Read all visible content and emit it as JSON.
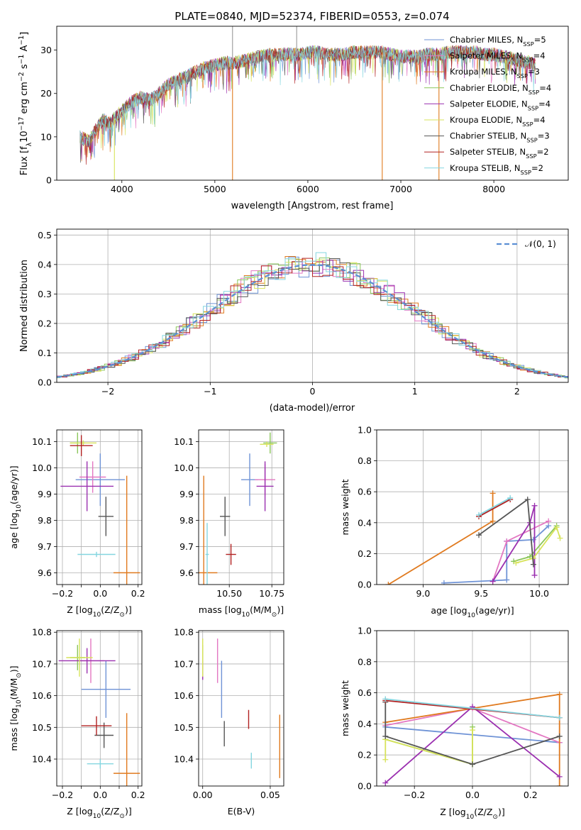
{
  "title": "PLATE=0840, MJD=52374, FIBERID=0553, z=0.074",
  "series": [
    {
      "key": "chab_miles",
      "color": "#6f93d6",
      "label": "Chabrier MILES, N",
      "sub": "SSP",
      "suffix": "=5"
    },
    {
      "key": "salp_miles",
      "color": "#e377c2",
      "label": "Salpeter MILES, N",
      "sub": "SSP",
      "suffix": "=4"
    },
    {
      "key": "krou_miles",
      "color": "#e07a1f",
      "label": "Kroupa MILES, N",
      "sub": "SSP",
      "suffix": "=3"
    },
    {
      "key": "chab_elodie",
      "color": "#8ac65a",
      "label": "Chabrier ELODIE, N",
      "sub": "SSP",
      "suffix": "=4"
    },
    {
      "key": "salp_elodie",
      "color": "#9b30b0",
      "label": "Salpeter ELODIE, N",
      "sub": "SSP",
      "suffix": "=4"
    },
    {
      "key": "krou_elodie",
      "color": "#d7e35a",
      "label": "Kroupa ELODIE, N",
      "sub": "SSP",
      "suffix": "=4"
    },
    {
      "key": "chab_stelib",
      "color": "#555555",
      "label": "Chabrier STELIB, N",
      "sub": "SSP",
      "suffix": "=3"
    },
    {
      "key": "salp_stelib",
      "color": "#b22222",
      "label": "Salpeter STELIB, N",
      "sub": "SSP",
      "suffix": "=2"
    },
    {
      "key": "krou_stelib",
      "color": "#84d6e0",
      "label": "Kroupa STELIB, N",
      "sub": "SSP",
      "suffix": "=2"
    }
  ],
  "chart_data": [
    {
      "id": "spectrum",
      "type": "line",
      "xlabel": "wavelength [Angstrom, rest frame]",
      "ylabel": "Flux [f",
      "ylabel_sub": "λ",
      "ylabel_rest": "10",
      "ylabel_sup": "−17",
      "ylabel_tail": " erg cm",
      "ylabel_sup2": "−2",
      "ylabel_tail2": " s",
      "ylabel_sup3": "−1",
      "ylabel_tail3": " A",
      "ylabel_sup4": "−1",
      "ylabel_end": "]",
      "xlim": [
        3300,
        8800
      ],
      "ylim": [
        0,
        35.5
      ],
      "xticks": [
        4000,
        5000,
        6000,
        7000,
        8000
      ],
      "yticks": [
        0,
        10,
        20,
        30
      ],
      "continuum": [
        [
          3550,
          10
        ],
        [
          3650,
          9
        ],
        [
          3700,
          11
        ],
        [
          3800,
          14
        ],
        [
          3870,
          13
        ],
        [
          3950,
          15
        ],
        [
          4000,
          16
        ],
        [
          4100,
          18
        ],
        [
          4200,
          19
        ],
        [
          4300,
          18.5
        ],
        [
          4400,
          20
        ],
        [
          4500,
          22
        ],
        [
          4600,
          23
        ],
        [
          4700,
          24
        ],
        [
          4800,
          25
        ],
        [
          4900,
          26
        ],
        [
          5000,
          26.5
        ],
        [
          5100,
          27
        ],
        [
          5200,
          27
        ],
        [
          5300,
          27.5
        ],
        [
          5400,
          28
        ],
        [
          5500,
          28.5
        ],
        [
          5600,
          29
        ],
        [
          5700,
          29
        ],
        [
          5800,
          29
        ],
        [
          5900,
          29
        ],
        [
          6000,
          29.5
        ],
        [
          6100,
          29.5
        ],
        [
          6200,
          29
        ],
        [
          6300,
          29
        ],
        [
          6400,
          29
        ],
        [
          6500,
          29.5
        ],
        [
          6600,
          29.5
        ],
        [
          6700,
          29.5
        ],
        [
          6800,
          29.5
        ],
        [
          6900,
          29
        ],
        [
          7000,
          28.5
        ],
        [
          7100,
          28.5
        ],
        [
          7200,
          28.5
        ],
        [
          7300,
          29
        ],
        [
          7400,
          29
        ],
        [
          7500,
          29.5
        ],
        [
          7600,
          29.5
        ],
        [
          7700,
          29.5
        ],
        [
          7800,
          29.5
        ],
        [
          7900,
          29
        ],
        [
          8000,
          29
        ],
        [
          8100,
          28.5
        ],
        [
          8200,
          28
        ],
        [
          8300,
          27.5
        ],
        [
          8400,
          27
        ],
        [
          8450,
          26.5
        ]
      ],
      "spikes": [
        [
          3920,
          -1
        ],
        [
          5190,
          -1
        ],
        [
          6800,
          -1
        ],
        [
          7410,
          -1
        ],
        [
          5190,
          37
        ],
        [
          5880,
          37
        ]
      ]
    },
    {
      "id": "residual_hist",
      "type": "area",
      "xlabel": "(data-model)/error",
      "ylabel": "Normed distribution",
      "xlim": [
        -2.5,
        2.5
      ],
      "ylim": [
        0,
        0.52
      ],
      "xticks": [
        -2,
        -1,
        0,
        1,
        2
      ],
      "yticks": [
        0,
        0.1,
        0.2,
        0.3,
        0.4,
        0.5
      ],
      "legend": "𝒩(0, 1)",
      "bin_width": 0.1
    },
    {
      "id": "age_vs_Z",
      "type": "scatter",
      "xlabel": "Z [log",
      "xlabel_sub": "10",
      "xlabel_tail": "(Z/Z",
      "xlabel_sub2": "⊙",
      "xlabel_end": ")]",
      "ylabel": "age  [log",
      "ylabel_sub": "10",
      "ylabel_tail": "(age/yr)]",
      "xlim": [
        -0.23,
        0.22
      ],
      "ylim": [
        9.555,
        10.145
      ],
      "xticks": [
        -0.2,
        -0.1,
        0.0,
        0.1,
        0.2
      ],
      "xticklabels": [
        "−0.2",
        "",
        "0.0",
        "",
        "0.2"
      ],
      "yticks": [
        9.6,
        9.7,
        9.8,
        9.9,
        10.0,
        10.1
      ],
      "points": [
        {
          "s": 0,
          "x": 0.0,
          "xe": 0.13,
          "y": 9.955,
          "ye": 0.1
        },
        {
          "s": 1,
          "x": -0.04,
          "xe": 0.07,
          "y": 9.965,
          "ye": 0.06
        },
        {
          "s": 2,
          "x": 0.14,
          "xe": 0.07,
          "y": 9.6,
          "ye": 0.37
        },
        {
          "s": 3,
          "x": -0.12,
          "xe": 0.04,
          "y": 10.095,
          "ye": 0.04
        },
        {
          "s": 4,
          "x": -0.07,
          "xe": 0.14,
          "y": 9.93,
          "ye": 0.095
        },
        {
          "s": 5,
          "x": -0.09,
          "xe": 0.07,
          "y": 10.095,
          "ye": 0.01
        },
        {
          "s": 6,
          "x": 0.03,
          "xe": 0.04,
          "y": 9.815,
          "ye": 0.075
        },
        {
          "s": 7,
          "x": -0.1,
          "xe": 0.06,
          "y": 10.085,
          "ye": 0.04
        },
        {
          "s": 8,
          "x": -0.02,
          "xe": 0.1,
          "y": 9.67,
          "ye": 0.01
        }
      ]
    },
    {
      "id": "age_vs_mass",
      "type": "scatter",
      "xlabel": "mass [log",
      "xlabel_sub": "10",
      "xlabel_tail": "(M/M",
      "xlabel_sub2": "⊙",
      "xlabel_end": ")]",
      "xlim": [
        10.32,
        10.82
      ],
      "ylim": [
        9.555,
        10.145
      ],
      "xticks": [
        10.5,
        10.75
      ],
      "xticklabels": [
        "10.50",
        "10.75"
      ],
      "yticks": [
        9.6,
        9.7,
        9.8,
        9.9,
        10.0,
        10.1
      ],
      "points": [
        {
          "s": 0,
          "x": 10.62,
          "xe": 0.05,
          "y": 9.955,
          "ye": 0.1
        },
        {
          "s": 1,
          "x": 10.71,
          "xe": 0.06,
          "y": 9.955,
          "ye": 0.06
        },
        {
          "s": 2,
          "x": 10.35,
          "xe": 0.08,
          "y": 9.6,
          "ye": 0.37
        },
        {
          "s": 3,
          "x": 10.74,
          "xe": 0.04,
          "y": 10.095,
          "ye": 0.04
        },
        {
          "s": 4,
          "x": 10.71,
          "xe": 0.05,
          "y": 9.93,
          "ye": 0.095
        },
        {
          "s": 5,
          "x": 10.72,
          "xe": 0.04,
          "y": 10.09,
          "ye": 0.01
        },
        {
          "s": 6,
          "x": 10.475,
          "xe": 0.03,
          "y": 9.815,
          "ye": 0.075
        },
        {
          "s": 7,
          "x": 10.51,
          "xe": 0.03,
          "y": 9.67,
          "ye": 0.04
        },
        {
          "s": 8,
          "x": 10.37,
          "xe": 0.01,
          "y": 9.67,
          "ye": 0.12
        }
      ]
    },
    {
      "id": "weight_vs_age",
      "type": "line",
      "xlabel": "age  [log",
      "xlabel_sub": "10",
      "xlabel_tail": "(age/yr)]",
      "ylabel": "mass weight",
      "xlim": [
        8.6,
        10.25
      ],
      "ylim": [
        0,
        1
      ],
      "xticks": [
        9.0,
        9.5,
        10.0
      ],
      "xticklabels": [
        "9.0",
        "9.5",
        "10.0"
      ],
      "yticks": [
        0,
        0.2,
        0.4,
        0.6,
        0.8,
        1.0
      ],
      "lines": [
        {
          "s": 0,
          "pts": [
            [
              9.18,
              0.01
            ],
            [
              9.72,
              0.03
            ],
            [
              9.72,
              0.28
            ],
            [
              9.95,
              0.29
            ],
            [
              10.08,
              0.38
            ]
          ]
        },
        {
          "s": 1,
          "pts": [
            [
              9.6,
              0.02
            ],
            [
              9.72,
              0.28
            ],
            [
              10.08,
              0.41
            ]
          ]
        },
        {
          "s": 2,
          "pts": [
            [
              8.7,
              0.0
            ],
            [
              9.6,
              0.41
            ],
            [
              9.6,
              0.59
            ]
          ]
        },
        {
          "s": 3,
          "pts": [
            [
              9.78,
              0.15
            ],
            [
              9.92,
              0.18
            ],
            [
              10.15,
              0.38
            ]
          ]
        },
        {
          "s": 4,
          "pts": [
            [
              9.6,
              0.02
            ],
            [
              9.92,
              0.4
            ],
            [
              9.96,
              0.51
            ],
            [
              9.96,
              0.06
            ]
          ]
        },
        {
          "s": 5,
          "pts": [
            [
              9.8,
              0.14
            ],
            [
              9.95,
              0.17
            ],
            [
              10.15,
              0.37
            ],
            [
              10.18,
              0.3
            ]
          ]
        },
        {
          "s": 6,
          "pts": [
            [
              9.48,
              0.32
            ],
            [
              9.9,
              0.55
            ],
            [
              9.95,
              0.13
            ]
          ]
        },
        {
          "s": 7,
          "pts": [
            [
              9.48,
              0.44
            ],
            [
              9.75,
              0.55
            ]
          ]
        },
        {
          "s": 8,
          "pts": [
            [
              9.48,
              0.45
            ],
            [
              9.75,
              0.56
            ]
          ]
        }
      ]
    },
    {
      "id": "mass_vs_Z",
      "type": "scatter",
      "xlabel": "Z [log",
      "xlabel_sub": "10",
      "xlabel_tail": "(Z/Z",
      "xlabel_sub2": "⊙",
      "xlabel_end": ")]",
      "ylabel": "mass [log",
      "ylabel_sub": "10",
      "ylabel_tail": "(M/M",
      "ylabel_sub2": "⊙",
      "ylabel_end": ")]",
      "xlim": [
        -0.23,
        0.22
      ],
      "ylim": [
        10.315,
        10.805
      ],
      "xticks": [
        -0.2,
        -0.1,
        0.0,
        0.1,
        0.2
      ],
      "xticklabels": [
        "−0.2",
        "",
        "0.0",
        "",
        "0.2"
      ],
      "yticks": [
        10.4,
        10.5,
        10.6,
        10.7,
        10.8
      ],
      "points": [
        {
          "s": 0,
          "x": 0.03,
          "xe": 0.13,
          "y": 10.62,
          "ye": 0.09
        },
        {
          "s": 1,
          "x": -0.05,
          "xe": 0.07,
          "y": 10.71,
          "ye": 0.07
        },
        {
          "s": 2,
          "x": 0.14,
          "xe": 0.07,
          "y": 10.355,
          "ye": 0.19
        },
        {
          "s": 3,
          "x": -0.12,
          "xe": 0.04,
          "y": 10.72,
          "ye": 0.04
        },
        {
          "s": 4,
          "x": -0.07,
          "xe": 0.15,
          "y": 10.71,
          "ye": 0.04
        },
        {
          "s": 5,
          "x": -0.11,
          "xe": 0.07,
          "y": 10.72,
          "ye": 0.06
        },
        {
          "s": 6,
          "x": 0.02,
          "xe": 0.05,
          "y": 10.475,
          "ye": 0.04
        },
        {
          "s": 7,
          "x": -0.02,
          "xe": 0.08,
          "y": 10.505,
          "ye": 0.03
        },
        {
          "s": 8,
          "x": 0.0,
          "xe": 0.07,
          "y": 10.385,
          "ye": 0.015
        }
      ]
    },
    {
      "id": "mass_vs_ebv",
      "type": "scatter",
      "xlabel": "E(B-V)",
      "xlim": [
        -0.003,
        0.06
      ],
      "ylim": [
        10.315,
        10.805
      ],
      "xticks": [
        0,
        0.05
      ],
      "xticklabels": [
        "0.00",
        "0.05"
      ],
      "yticks": [
        10.4,
        10.5,
        10.6,
        10.7,
        10.8
      ],
      "points": [
        {
          "s": 0,
          "x": 0.014,
          "y": 10.62,
          "ye": 0.09
        },
        {
          "s": 1,
          "x": 0.011,
          "y": 10.71,
          "ye": 0.07
        },
        {
          "s": 2,
          "x": 0.057,
          "y": 10.44,
          "ye": 0.1
        },
        {
          "s": 3,
          "x": 0.0,
          "y": 10.72,
          "ye": 0.04
        },
        {
          "s": 4,
          "x": 0.0,
          "y": 10.68,
          "ye": 0.03
        },
        {
          "s": 5,
          "x": 0.0,
          "y": 10.72,
          "ye": 0.06
        },
        {
          "s": 6,
          "x": 0.016,
          "y": 10.48,
          "ye": 0.04
        },
        {
          "s": 7,
          "x": 0.034,
          "y": 10.525,
          "ye": 0.03
        },
        {
          "s": 8,
          "x": 0.036,
          "y": 10.395,
          "ye": 0.025
        }
      ]
    },
    {
      "id": "weight_vs_Z",
      "type": "line",
      "xlabel": "Z [log",
      "xlabel_sub": "10",
      "xlabel_tail": "(Z/Z",
      "xlabel_sub2": "⊙",
      "xlabel_end": ")]",
      "ylabel": "mass weight",
      "xlim": [
        -0.33,
        0.33
      ],
      "ylim": [
        0,
        1
      ],
      "xticks": [
        -0.2,
        0.0,
        0.2
      ],
      "xticklabels": [
        "−0.2",
        "0.0",
        "0.2"
      ],
      "yticks": [
        0,
        0.2,
        0.4,
        0.6,
        0.8,
        1.0
      ],
      "lines": [
        {
          "s": 0,
          "pts": [
            [
              -0.3,
              0.38
            ],
            [
              0.3,
              0.28
            ]
          ]
        },
        {
          "s": 1,
          "pts": [
            [
              -0.3,
              0.39
            ],
            [
              0.0,
              0.5
            ],
            [
              0.3,
              0.28
            ]
          ]
        },
        {
          "s": 2,
          "pts": [
            [
              -0.3,
              0.41
            ],
            [
              0.3,
              0.59
            ],
            [
              0.3,
              0.0
            ]
          ]
        },
        {
          "s": 3,
          "pts": [
            [
              -0.3,
              0.3
            ],
            [
              0.0,
              0.14
            ],
            [
              0.0,
              0.38
            ]
          ]
        },
        {
          "s": 4,
          "pts": [
            [
              -0.3,
              0.02
            ],
            [
              0.0,
              0.51
            ],
            [
              0.3,
              0.06
            ]
          ]
        },
        {
          "s": 5,
          "pts": [
            [
              -0.3,
              0.17
            ],
            [
              -0.3,
              0.3
            ],
            [
              0.0,
              0.14
            ],
            [
              0.0,
              0.36
            ]
          ]
        },
        {
          "s": 6,
          "pts": [
            [
              -0.3,
              0.54
            ],
            [
              -0.3,
              0.32
            ],
            [
              0.0,
              0.14
            ],
            [
              0.3,
              0.32
            ]
          ]
        },
        {
          "s": 7,
          "pts": [
            [
              -0.3,
              0.55
            ],
            [
              0.3,
              0.44
            ]
          ]
        },
        {
          "s": 8,
          "pts": [
            [
              -0.3,
              0.56
            ],
            [
              0.3,
              0.44
            ]
          ]
        }
      ]
    }
  ]
}
